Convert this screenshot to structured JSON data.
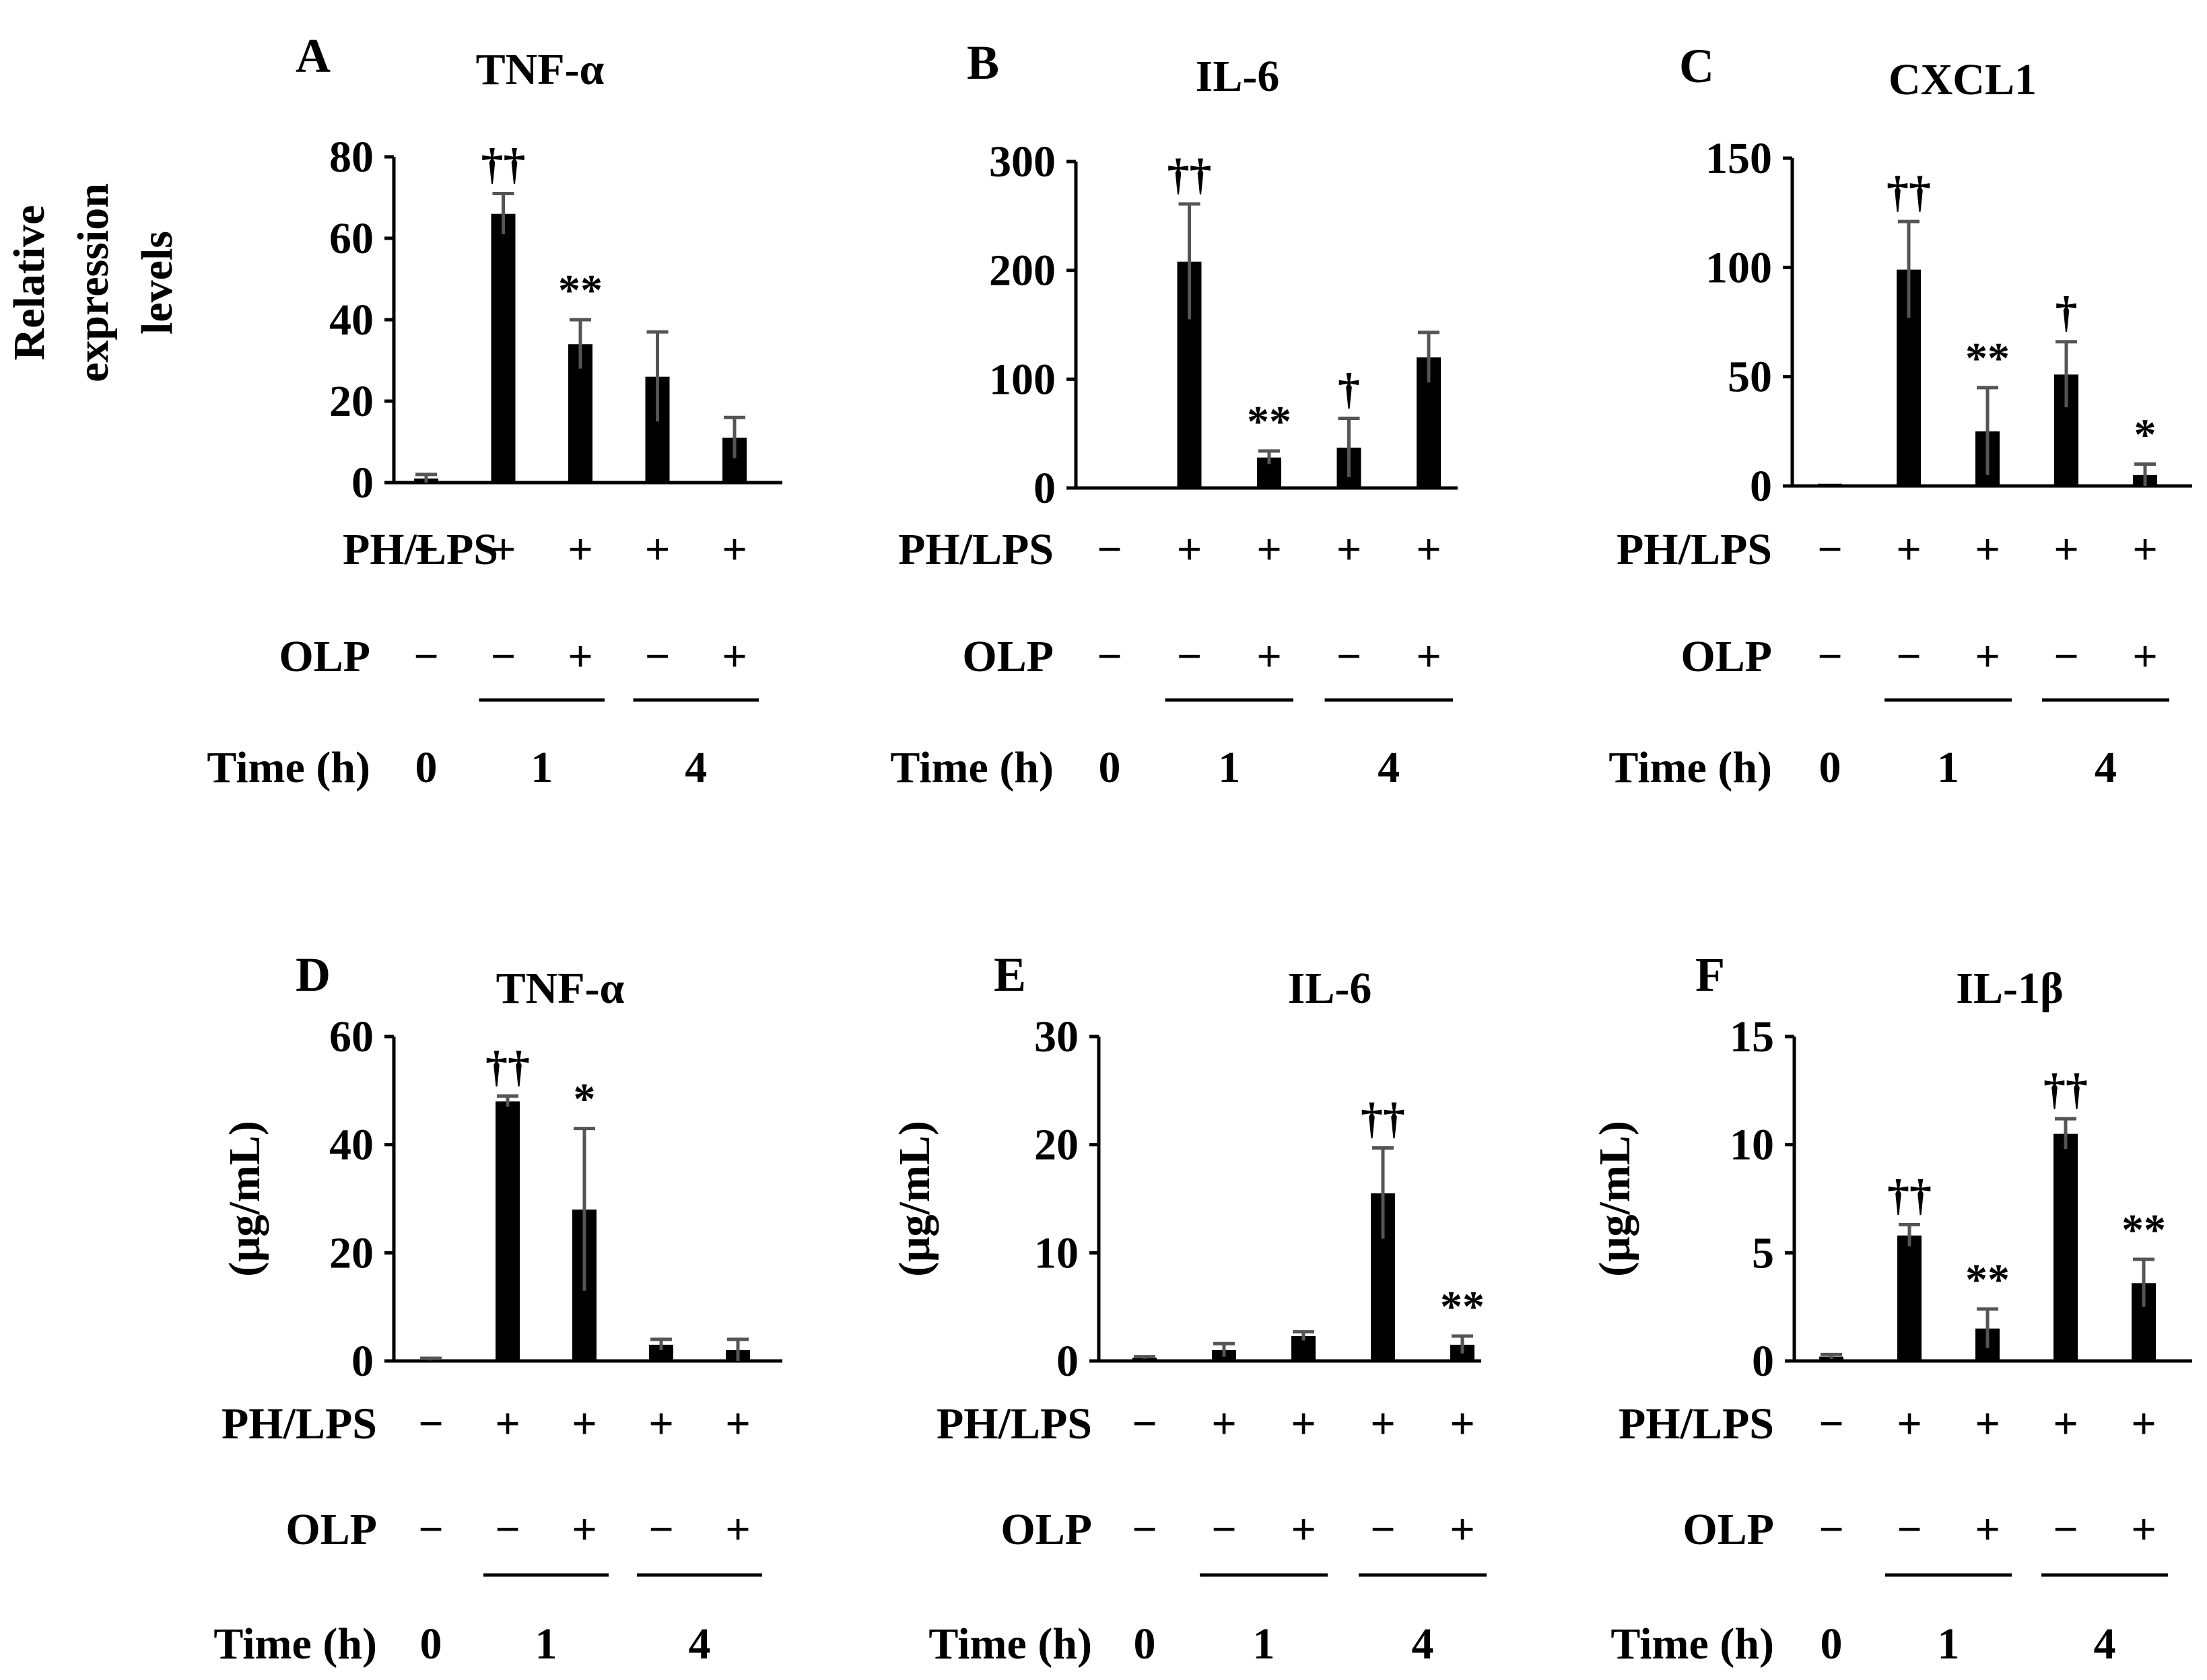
{
  "row_labels": {
    "treatment": "PH/LPS",
    "inhibitor": "OLP",
    "time": "Time (h)"
  },
  "chart_data": [
    {
      "type": "bar",
      "panel": "A",
      "title": "TNF-α",
      "ylabel": "Relative expression levels",
      "ylabel_lines": [
        "Relative",
        "expression",
        "levels"
      ],
      "ylim": [
        0,
        80
      ],
      "yticks": [
        "0",
        "20",
        "40",
        "60",
        "80"
      ],
      "values": [
        1,
        66,
        34,
        26,
        11
      ],
      "errors": [
        1,
        5,
        6,
        11,
        5
      ],
      "annotations": [
        "",
        "††",
        "**",
        "",
        ""
      ],
      "treatment": [
        "−",
        "+",
        "+",
        "+",
        "+"
      ],
      "inhibitor": [
        "−",
        "−",
        "+",
        "−",
        "+"
      ],
      "time_labels": [
        "0",
        "1",
        "4"
      ]
    },
    {
      "type": "bar",
      "panel": "B",
      "title": "IL-6",
      "ylabel": "",
      "ylabel_lines": [],
      "ylim": [
        0,
        300
      ],
      "yticks": [
        "0",
        "100",
        "200",
        "300"
      ],
      "values": [
        1,
        208,
        28,
        37,
        120
      ],
      "errors": [
        0,
        53,
        6,
        27,
        23
      ],
      "annotations": [
        "",
        "††",
        "**",
        "†",
        ""
      ],
      "treatment": [
        "−",
        "+",
        "+",
        "+",
        "+"
      ],
      "inhibitor": [
        "−",
        "−",
        "+",
        "−",
        "+"
      ],
      "time_labels": [
        "0",
        "1",
        "4"
      ]
    },
    {
      "type": "bar",
      "panel": "C",
      "title": "CXCL1",
      "ylabel": "",
      "ylabel_lines": [],
      "ylim": [
        0,
        150
      ],
      "yticks": [
        "0",
        "50",
        "100",
        "150"
      ],
      "values": [
        1,
        99,
        25,
        51,
        5
      ],
      "errors": [
        0,
        22,
        20,
        15,
        5
      ],
      "annotations": [
        "",
        "††",
        "**",
        "†",
        "*"
      ],
      "treatment": [
        "−",
        "+",
        "+",
        "+",
        "+"
      ],
      "inhibitor": [
        "−",
        "−",
        "+",
        "−",
        "+"
      ],
      "time_labels": [
        "0",
        "1",
        "4"
      ]
    },
    {
      "type": "bar",
      "panel": "D",
      "title": "TNF-α",
      "ylabel": "(μg/mL)",
      "ylabel_lines": [
        "(μg/mL)"
      ],
      "ylim": [
        0,
        60
      ],
      "yticks": [
        "0",
        "20",
        "40",
        "60"
      ],
      "values": [
        0.3,
        48,
        28,
        3,
        2
      ],
      "errors": [
        0.2,
        1,
        15,
        1,
        2
      ],
      "annotations": [
        "",
        "††",
        "*",
        "",
        ""
      ],
      "treatment": [
        "−",
        "+",
        "+",
        "+",
        "+"
      ],
      "inhibitor": [
        "−",
        "−",
        "+",
        "−",
        "+"
      ],
      "time_labels": [
        "0",
        "1",
        "4"
      ]
    },
    {
      "type": "bar",
      "panel": "E",
      "title": "IL-6",
      "ylabel": "(μg/mL)",
      "ylabel_lines": [
        "(μg/mL)"
      ],
      "ylim": [
        0,
        30
      ],
      "yticks": [
        "0",
        "10",
        "20",
        "30"
      ],
      "values": [
        0.3,
        1,
        2.3,
        15.5,
        1.5
      ],
      "errors": [
        0.1,
        0.6,
        0.4,
        4.2,
        0.8
      ],
      "annotations": [
        "",
        "",
        "",
        "††",
        "**"
      ],
      "treatment": [
        "−",
        "+",
        "+",
        "+",
        "+"
      ],
      "inhibitor": [
        "−",
        "−",
        "+",
        "−",
        "+"
      ],
      "time_labels": [
        "0",
        "1",
        "4"
      ]
    },
    {
      "type": "bar",
      "panel": "F",
      "title": "IL-1β",
      "ylabel": "(μg/mL)",
      "ylabel_lines": [
        "(μg/mL)"
      ],
      "ylim": [
        0,
        15
      ],
      "yticks": [
        "0",
        "5",
        "10",
        "15"
      ],
      "values": [
        0.2,
        5.8,
        1.5,
        10.5,
        3.6
      ],
      "errors": [
        0.1,
        0.5,
        0.9,
        0.7,
        1.1
      ],
      "annotations": [
        "",
        "††",
        "**",
        "††",
        "**"
      ],
      "treatment": [
        "−",
        "+",
        "+",
        "+",
        "+"
      ],
      "inhibitor": [
        "−",
        "−",
        "+",
        "−",
        "+"
      ],
      "time_labels": [
        "0",
        "1",
        "4"
      ]
    }
  ]
}
